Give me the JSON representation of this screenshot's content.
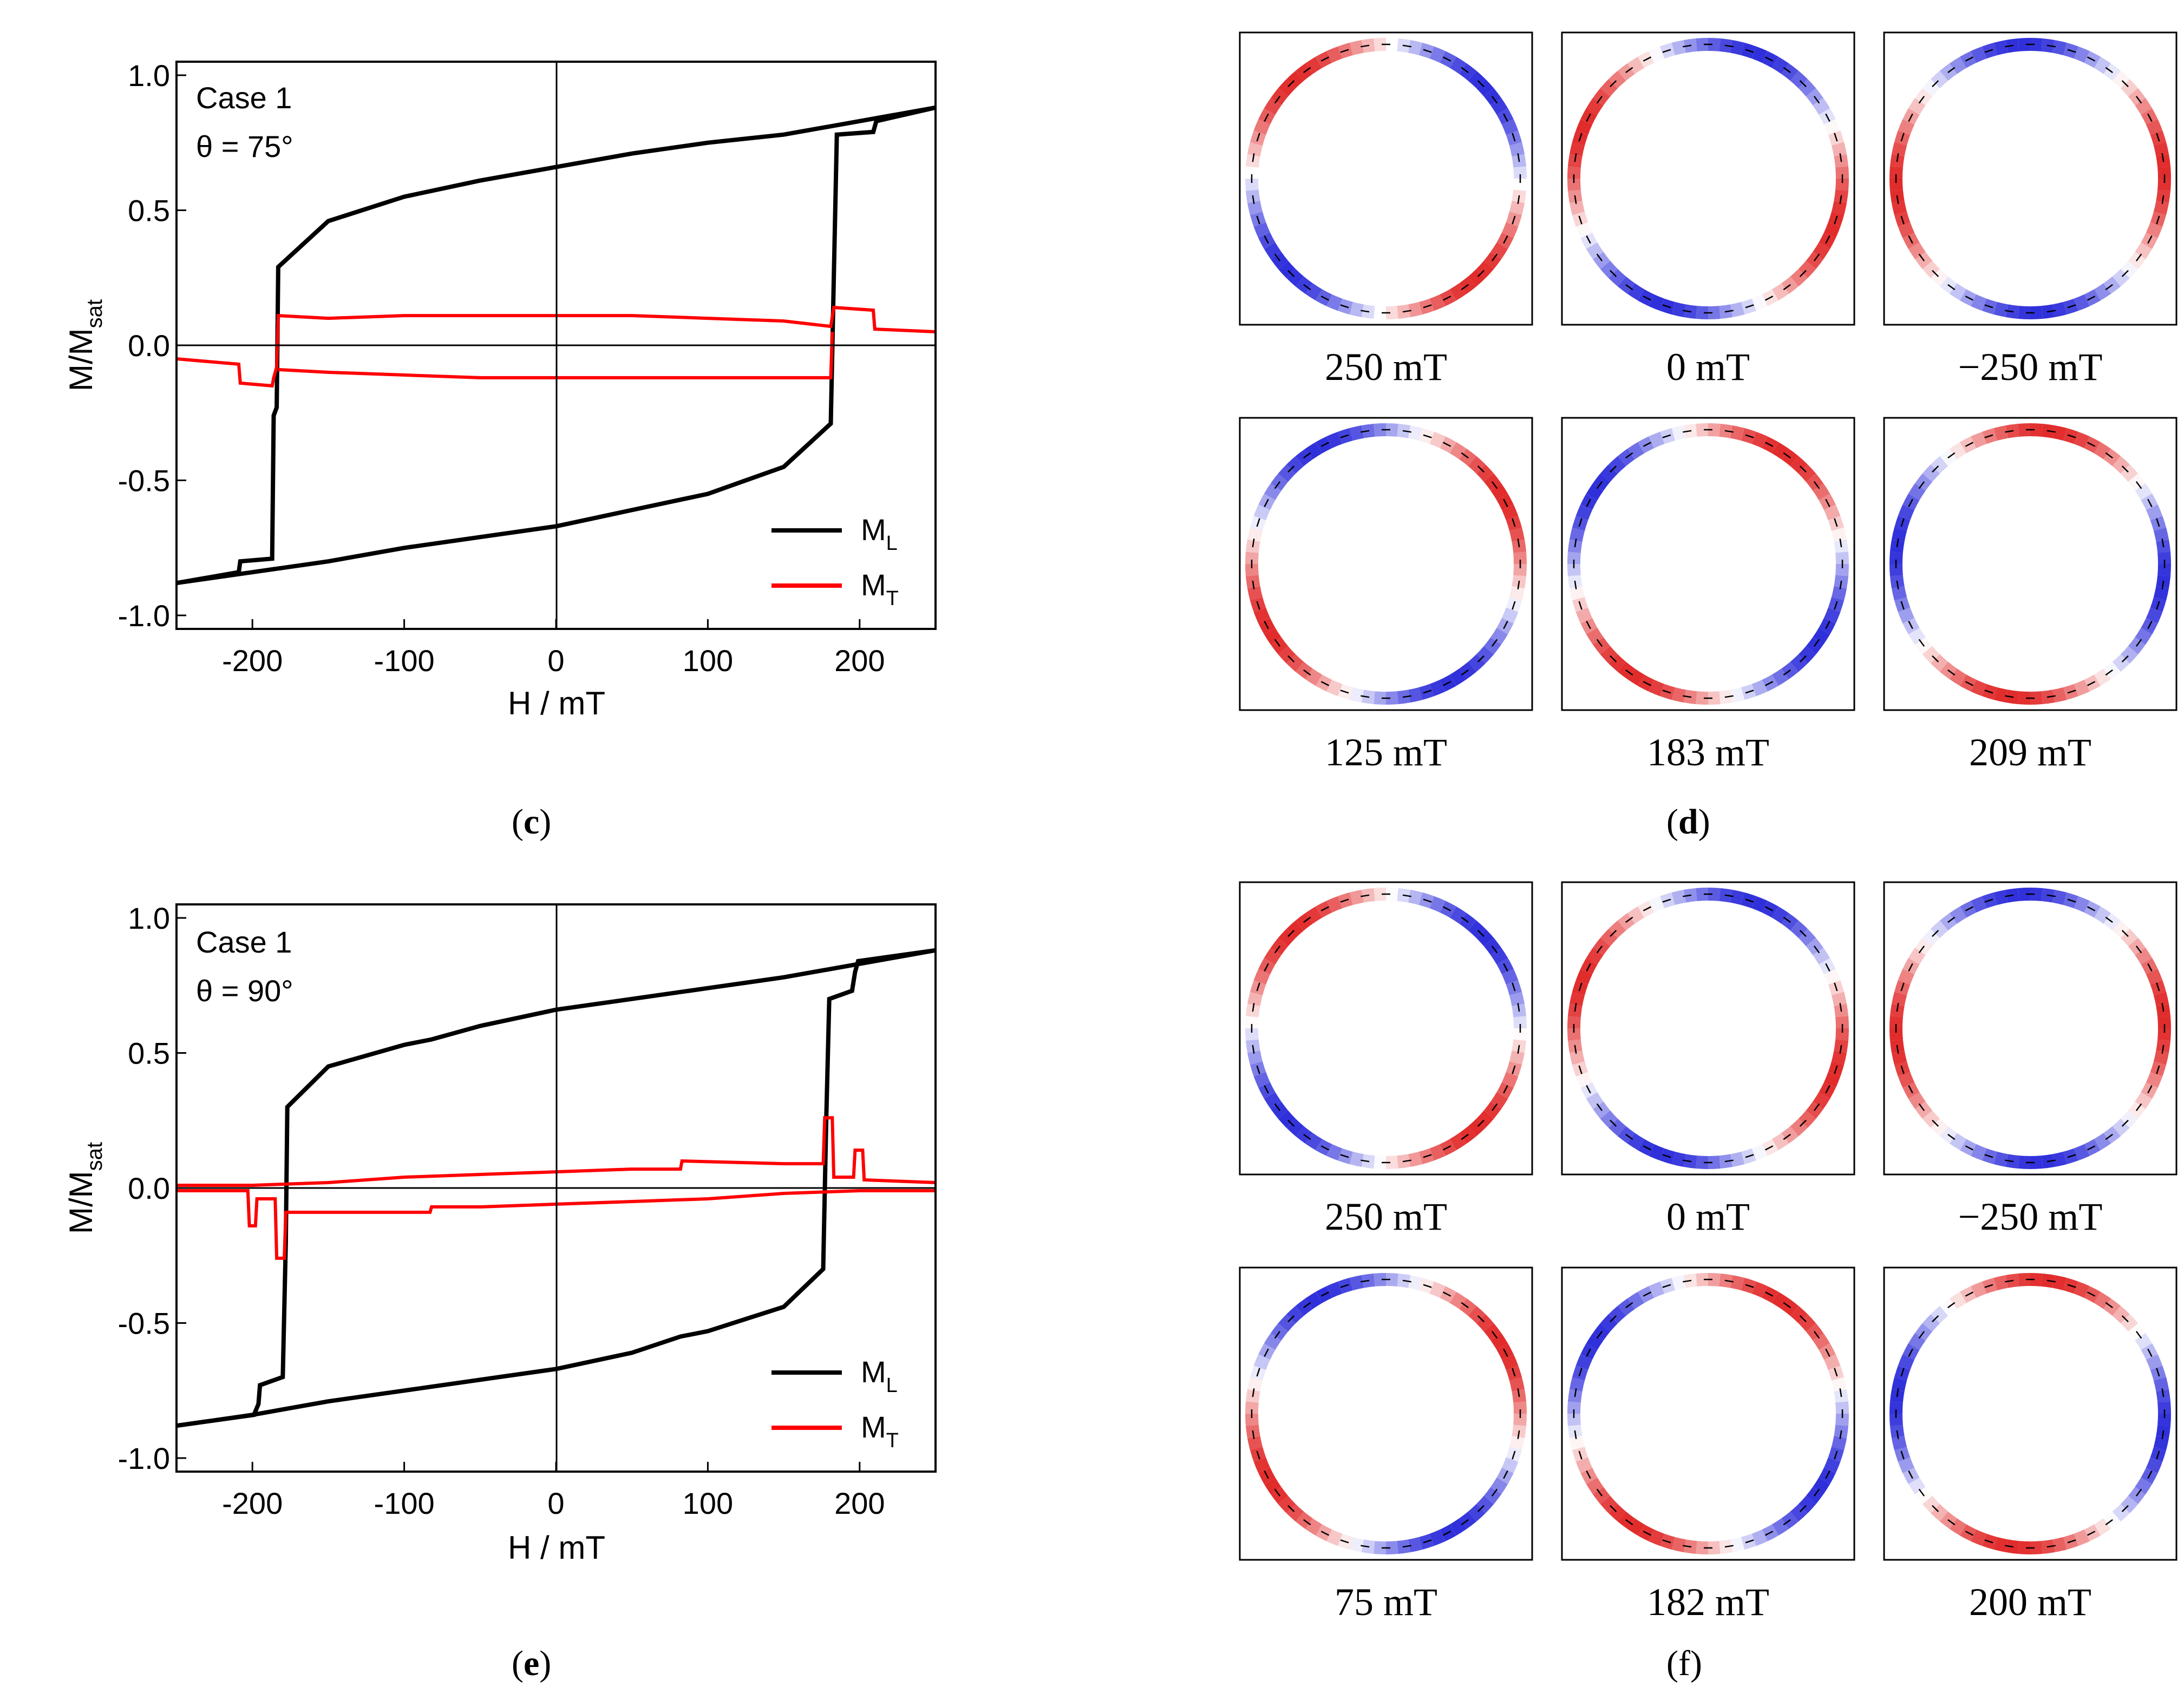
{
  "figure": {
    "panels": [
      {
        "id": "c",
        "label": "c",
        "annotation": {
          "case": "Case 1",
          "theta": "θ = 75°"
        },
        "chart_data": {
          "type": "line",
          "title": "",
          "xlabel": "H / mT",
          "ylabel": "M/M",
          "ylabel_sub": "sat",
          "xlim": [
            -250,
            250
          ],
          "ylim": [
            -1.05,
            1.05
          ],
          "xticks": [
            -200,
            -100,
            0,
            100,
            200
          ],
          "xtick_labels": [
            "-200",
            "-100",
            "0",
            "100",
            "200"
          ],
          "yticks": [
            -1.0,
            -0.5,
            0.0,
            0.5,
            1.0
          ],
          "ytick_labels": [
            "-1.0",
            "-0.5",
            "0.0",
            "0.5",
            "1.0"
          ],
          "legend": {
            "placement": "lower-right",
            "entries": [
              {
                "name": "M",
                "sub": "L",
                "color": "#000000"
              },
              {
                "name": "M",
                "sub": "T",
                "color": "#ff0000"
              }
            ]
          },
          "series": [
            {
              "name": "ML descending",
              "color": "#000000",
              "points": [
                [
                  250,
                  0.88
                ],
                [
                  200,
                  0.83
                ],
                [
                  150,
                  0.78
                ],
                [
                  100,
                  0.75
                ],
                [
                  50,
                  0.71
                ],
                [
                  0,
                  0.66
                ],
                [
                  -50,
                  0.61
                ],
                [
                  -100,
                  0.55
                ],
                [
                  -150,
                  0.46
                ],
                [
                  -183,
                  0.29
                ],
                [
                  -184,
                  -0.23
                ],
                [
                  -186,
                  -0.26
                ],
                [
                  -187,
                  -0.79
                ],
                [
                  -208,
                  -0.8
                ],
                [
                  -209,
                  -0.84
                ],
                [
                  -250,
                  -0.88
                ]
              ]
            },
            {
              "name": "ML ascending",
              "color": "#000000",
              "points": [
                [
                  -250,
                  -0.88
                ],
                [
                  -200,
                  -0.84
                ],
                [
                  -150,
                  -0.8
                ],
                [
                  -100,
                  -0.75
                ],
                [
                  -50,
                  -0.71
                ],
                [
                  0,
                  -0.67
                ],
                [
                  50,
                  -0.61
                ],
                [
                  100,
                  -0.55
                ],
                [
                  150,
                  -0.45
                ],
                [
                  181,
                  -0.29
                ],
                [
                  183,
                  0.25
                ],
                [
                  185,
                  0.78
                ],
                [
                  209,
                  0.79
                ],
                [
                  211,
                  0.83
                ],
                [
                  250,
                  0.88
                ]
              ]
            },
            {
              "name": "MT upper",
              "color": "#ff0000",
              "points": [
                [
                  250,
                  0.05
                ],
                [
                  210,
                  0.06
                ],
                [
                  209,
                  0.13
                ],
                [
                  183,
                  0.14
                ],
                [
                  181,
                  0.07
                ],
                [
                  150,
                  0.09
                ],
                [
                  100,
                  0.1
                ],
                [
                  50,
                  0.11
                ],
                [
                  0,
                  0.11
                ],
                [
                  -50,
                  0.11
                ],
                [
                  -100,
                  0.11
                ],
                [
                  -150,
                  0.1
                ],
                [
                  -183,
                  0.11
                ],
                [
                  -184,
                  -0.08
                ],
                [
                  -186,
                  -0.12
                ],
                [
                  -187,
                  -0.15
                ],
                [
                  -208,
                  -0.14
                ],
                [
                  -209,
                  -0.07
                ],
                [
                  -250,
                  -0.05
                ]
              ]
            },
            {
              "name": "MT lower",
              "color": "#ff0000",
              "points": [
                [
                  -183,
                  -0.09
                ],
                [
                  -150,
                  -0.1
                ],
                [
                  -100,
                  -0.11
                ],
                [
                  -50,
                  -0.12
                ],
                [
                  0,
                  -0.12
                ],
                [
                  50,
                  -0.12
                ],
                [
                  100,
                  -0.12
                ],
                [
                  150,
                  -0.12
                ],
                [
                  181,
                  -0.12
                ],
                [
                  182,
                  0.05
                ]
              ]
            }
          ]
        }
      },
      {
        "id": "e",
        "label": "e",
        "annotation": {
          "case": "Case 1",
          "theta": "θ = 90°"
        },
        "chart_data": {
          "type": "line",
          "title": "",
          "xlabel": "H / mT",
          "ylabel": "M/M",
          "ylabel_sub": "sat",
          "xlim": [
            -250,
            250
          ],
          "ylim": [
            -1.05,
            1.05
          ],
          "xticks": [
            -200,
            -100,
            0,
            100,
            200
          ],
          "xtick_labels": [
            "-200",
            "-100",
            "0",
            "100",
            "200"
          ],
          "yticks": [
            -1.0,
            -0.5,
            0.0,
            0.5,
            1.0
          ],
          "ytick_labels": [
            "-1.0",
            "-0.5",
            "0.0",
            "0.5",
            "1.0"
          ],
          "legend": {
            "placement": "lower-right",
            "entries": [
              {
                "name": "M",
                "sub": "L",
                "color": "#000000"
              },
              {
                "name": "M",
                "sub": "T",
                "color": "#ff0000"
              }
            ]
          },
          "series": [
            {
              "name": "ML descending",
              "color": "#000000",
              "points": [
                [
                  250,
                  0.88
                ],
                [
                  200,
                  0.83
                ],
                [
                  150,
                  0.78
                ],
                [
                  100,
                  0.74
                ],
                [
                  50,
                  0.7
                ],
                [
                  0,
                  0.66
                ],
                [
                  -50,
                  0.6
                ],
                [
                  -82,
                  0.55
                ],
                [
                  -100,
                  0.53
                ],
                [
                  -150,
                  0.45
                ],
                [
                  -177,
                  0.3
                ],
                [
                  -178,
                  -0.2
                ],
                [
                  -180,
                  -0.7
                ],
                [
                  -195,
                  -0.73
                ],
                [
                  -196,
                  -0.8
                ],
                [
                  -199,
                  -0.84
                ],
                [
                  -250,
                  -0.88
                ]
              ]
            },
            {
              "name": "ML ascending",
              "color": "#000000",
              "points": [
                [
                  -250,
                  -0.88
                ],
                [
                  -200,
                  -0.84
                ],
                [
                  -150,
                  -0.79
                ],
                [
                  -100,
                  -0.75
                ],
                [
                  -50,
                  -0.71
                ],
                [
                  0,
                  -0.67
                ],
                [
                  50,
                  -0.61
                ],
                [
                  82,
                  -0.55
                ],
                [
                  100,
                  -0.53
                ],
                [
                  150,
                  -0.44
                ],
                [
                  176,
                  -0.3
                ],
                [
                  178,
                  0.25
                ],
                [
                  180,
                  0.7
                ],
                [
                  195,
                  0.73
                ],
                [
                  197,
                  0.8
                ],
                [
                  199,
                  0.84
                ],
                [
                  250,
                  0.88
                ]
              ]
            },
            {
              "name": "MT upper",
              "color": "#ff0000",
              "points": [
                [
                  -250,
                  0.01
                ],
                [
                  -200,
                  0.01
                ],
                [
                  -150,
                  0.02
                ],
                [
                  -100,
                  0.04
                ],
                [
                  -50,
                  0.05
                ],
                [
                  0,
                  0.06
                ],
                [
                  50,
                  0.07
                ],
                [
                  82,
                  0.07
                ],
                [
                  83,
                  0.1
                ],
                [
                  150,
                  0.09
                ],
                [
                  176,
                  0.09
                ],
                [
                  177,
                  0.26
                ],
                [
                  182,
                  0.26
                ],
                [
                  183,
                  0.04
                ],
                [
                  196,
                  0.04
                ],
                [
                  197,
                  0.14
                ],
                [
                  202,
                  0.14
                ],
                [
                  203,
                  0.03
                ],
                [
                  250,
                  0.02
                ]
              ]
            },
            {
              "name": "MT lower",
              "color": "#ff0000",
              "points": [
                [
                  250,
                  -0.01
                ],
                [
                  200,
                  -0.01
                ],
                [
                  150,
                  -0.02
                ],
                [
                  100,
                  -0.04
                ],
                [
                  50,
                  -0.05
                ],
                [
                  0,
                  -0.06
                ],
                [
                  -50,
                  -0.07
                ],
                [
                  -82,
                  -0.07
                ],
                [
                  -83,
                  -0.09
                ],
                [
                  -150,
                  -0.09
                ],
                [
                  -178,
                  -0.09
                ],
                [
                  -179,
                  -0.26
                ],
                [
                  -184,
                  -0.26
                ],
                [
                  -185,
                  -0.04
                ],
                [
                  -197,
                  -0.04
                ],
                [
                  -198,
                  -0.14
                ],
                [
                  -202,
                  -0.14
                ],
                [
                  -203,
                  -0.01
                ],
                [
                  -250,
                  -0.01
                ]
              ]
            }
          ]
        }
      }
    ],
    "snapshot_panels": [
      {
        "id": "d",
        "label": "d",
        "rows": [
          [
            "250 mT",
            "0 mT",
            "−250 mT"
          ],
          [
            "125 mT",
            "183 mT",
            "209 mT"
          ]
        ]
      },
      {
        "id": "f",
        "label": "f",
        "rows": [
          [
            "250 mT",
            "0 mT",
            "−250 mT"
          ],
          [
            "75 mT",
            "182 mT",
            "200 mT"
          ]
        ]
      }
    ]
  }
}
